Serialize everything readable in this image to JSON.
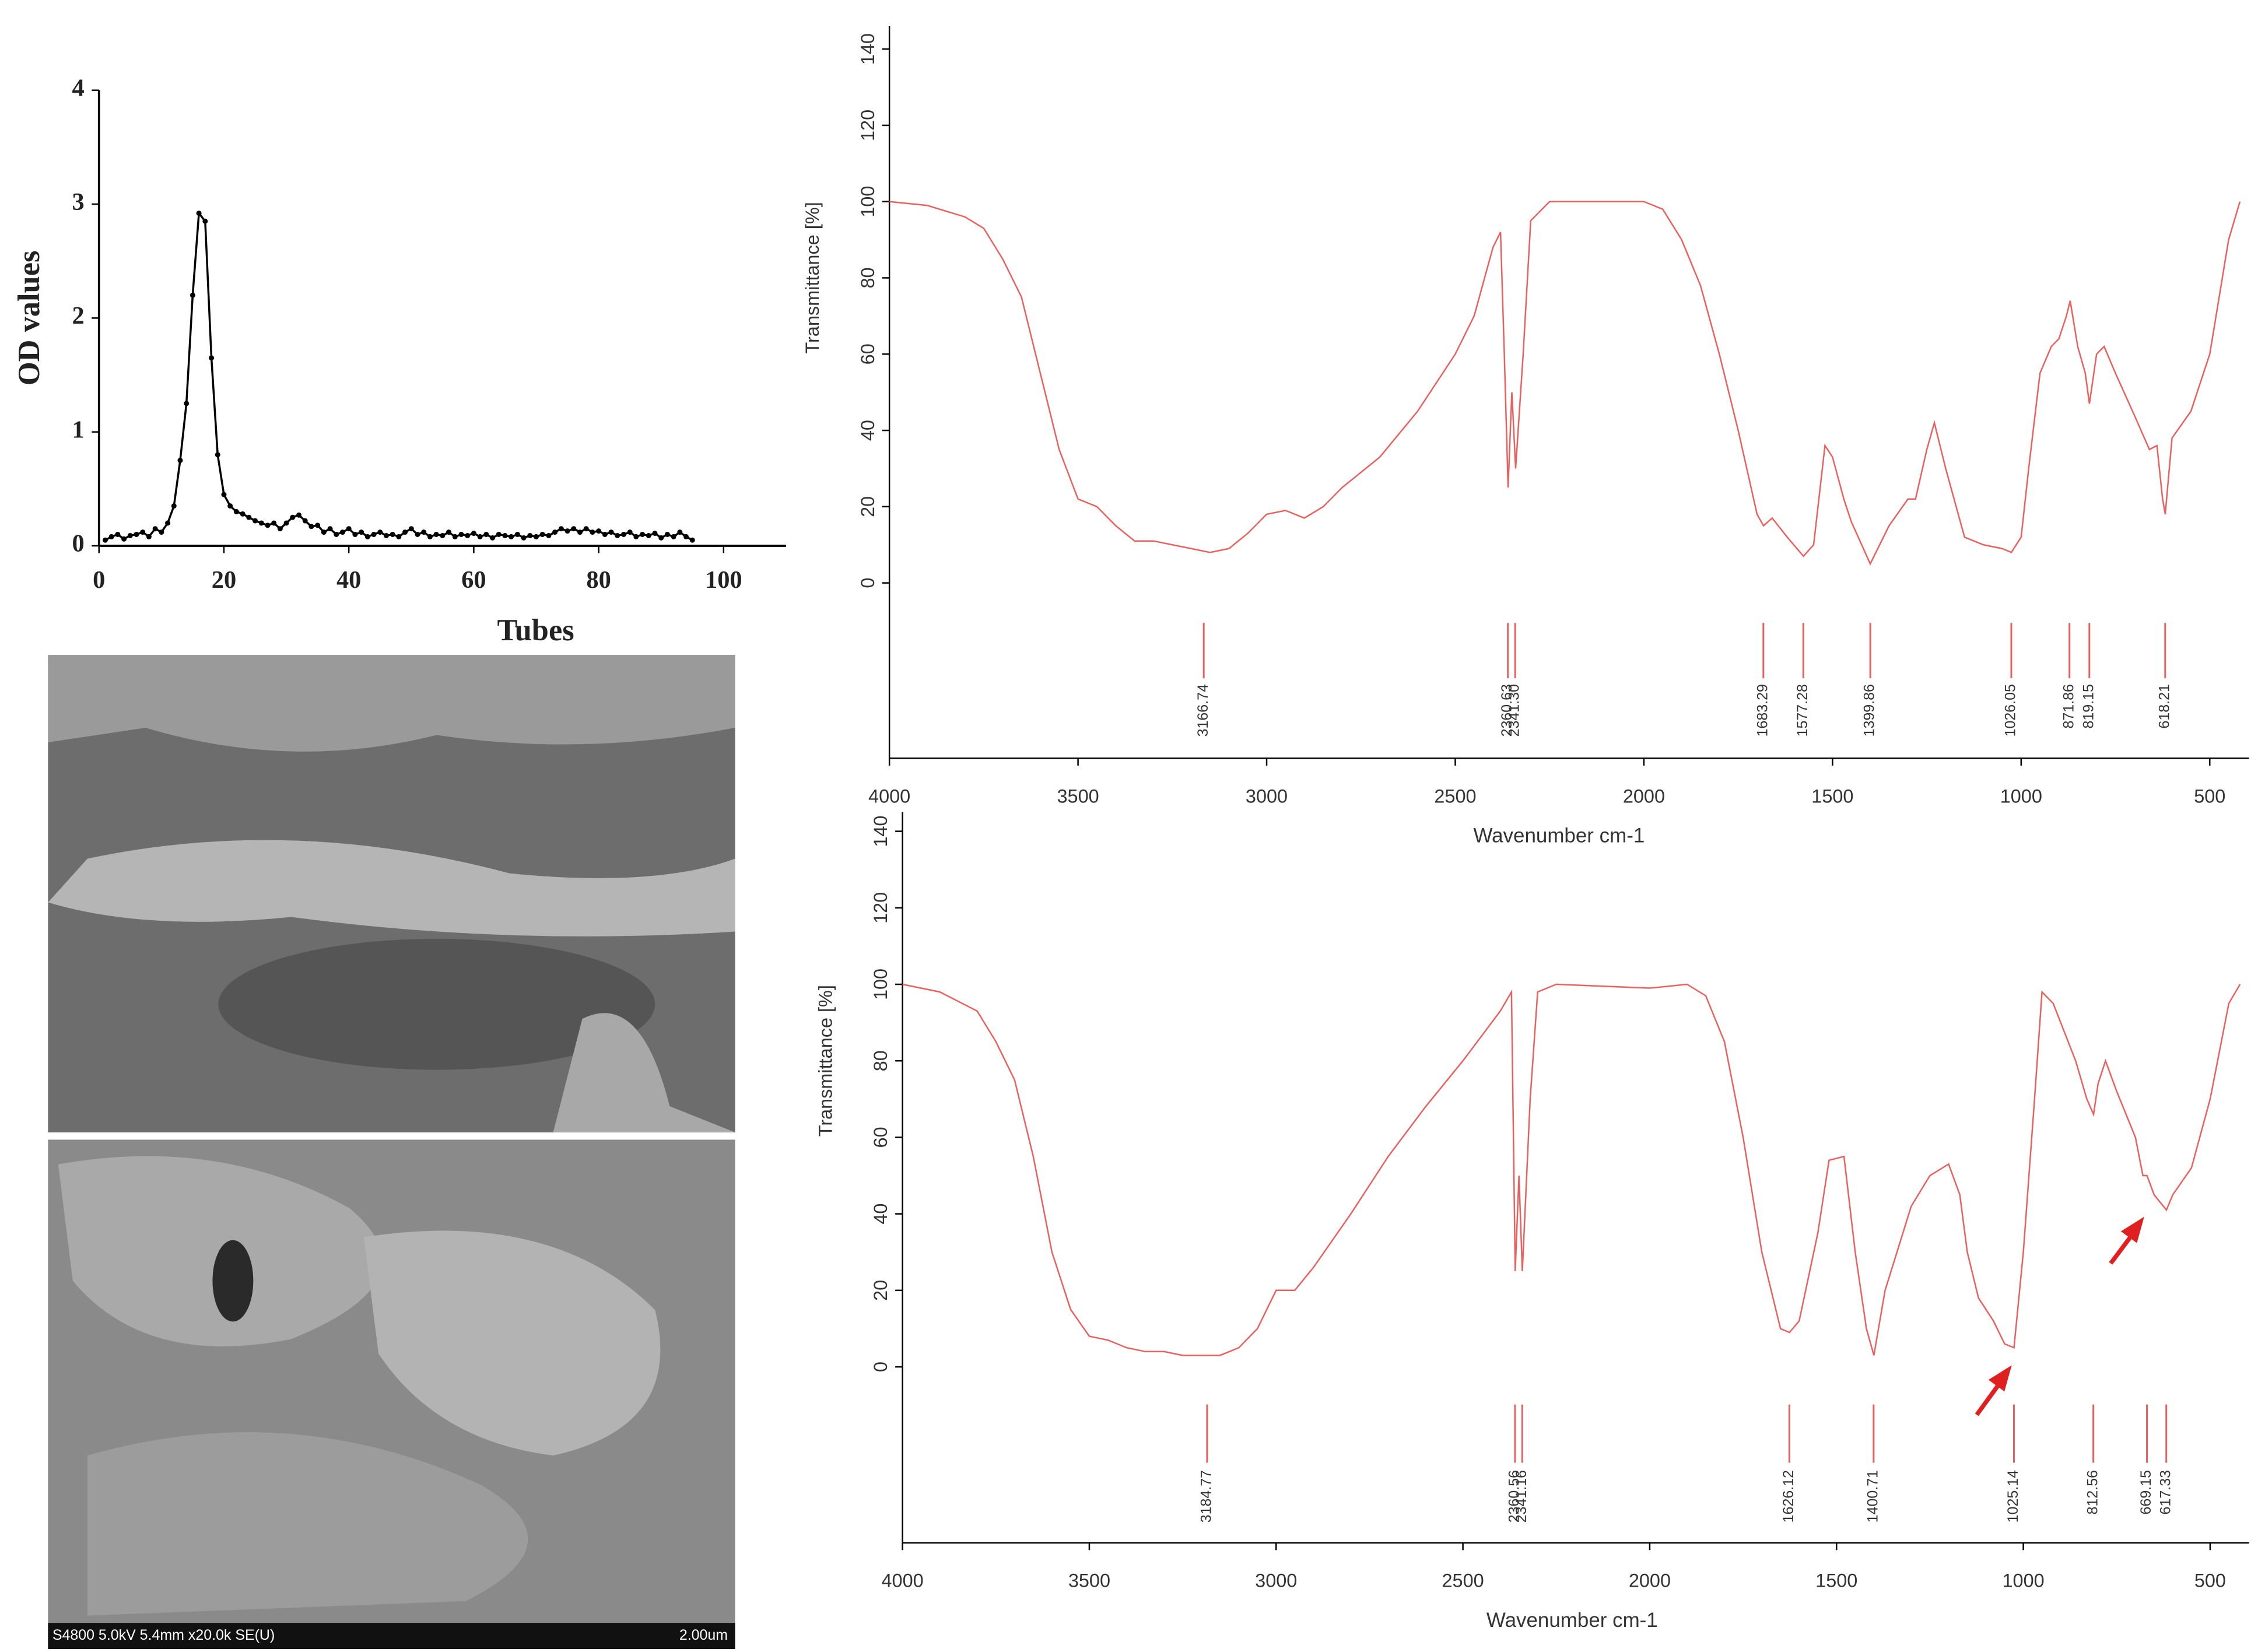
{
  "chart_data": [
    {
      "type": "line",
      "x_label": "Tubes",
      "y_label": "OD values",
      "color": "#000000",
      "markers": true,
      "x": [
        1,
        2,
        3,
        4,
        5,
        6,
        7,
        8,
        9,
        10,
        11,
        12,
        13,
        14,
        15,
        16,
        17,
        18,
        19,
        20,
        21,
        22,
        23,
        24,
        25,
        26,
        27,
        28,
        29,
        30,
        31,
        32,
        33,
        34,
        35,
        36,
        37,
        38,
        39,
        40,
        41,
        42,
        43,
        44,
        45,
        46,
        47,
        48,
        49,
        50,
        51,
        52,
        53,
        54,
        55,
        56,
        57,
        58,
        59,
        60,
        61,
        62,
        63,
        64,
        65,
        66,
        67,
        68,
        69,
        70,
        71,
        72,
        73,
        74,
        75,
        76,
        77,
        78,
        79,
        80,
        81,
        82,
        83,
        84,
        85,
        86,
        87,
        88,
        89,
        90,
        91,
        92,
        93,
        94,
        95
      ],
      "values": [
        0.05,
        0.08,
        0.1,
        0.06,
        0.09,
        0.1,
        0.12,
        0.08,
        0.15,
        0.12,
        0.2,
        0.35,
        0.75,
        1.25,
        2.2,
        2.92,
        2.85,
        1.65,
        0.8,
        0.45,
        0.35,
        0.3,
        0.28,
        0.25,
        0.22,
        0.2,
        0.18,
        0.2,
        0.15,
        0.2,
        0.25,
        0.27,
        0.22,
        0.17,
        0.18,
        0.12,
        0.15,
        0.1,
        0.12,
        0.15,
        0.1,
        0.12,
        0.08,
        0.1,
        0.12,
        0.09,
        0.1,
        0.08,
        0.12,
        0.15,
        0.1,
        0.12,
        0.08,
        0.1,
        0.09,
        0.12,
        0.08,
        0.1,
        0.09,
        0.11,
        0.08,
        0.1,
        0.07,
        0.1,
        0.09,
        0.08,
        0.1,
        0.07,
        0.09,
        0.08,
        0.1,
        0.09,
        0.12,
        0.15,
        0.13,
        0.15,
        0.12,
        0.15,
        0.12,
        0.13,
        0.1,
        0.12,
        0.09,
        0.1,
        0.12,
        0.08,
        0.1,
        0.09,
        0.11,
        0.07,
        0.1,
        0.08,
        0.12,
        0.08,
        0.05
      ],
      "xlim": [
        0,
        110
      ],
      "ylim": [
        0,
        4
      ],
      "xticks": [
        0,
        20,
        40,
        60,
        80,
        100
      ],
      "yticks": [
        0,
        1,
        2,
        3,
        4
      ]
    },
    {
      "type": "line",
      "x_label": "Wavenumber cm-1",
      "y_label": "Transmittance [%]",
      "color": "#e8615f",
      "markers": false,
      "x": [
        4000,
        3900,
        3800,
        3750,
        3700,
        3650,
        3600,
        3550,
        3500,
        3450,
        3400,
        3350,
        3300,
        3250,
        3200,
        3150,
        3100,
        3050,
        3000,
        2950,
        2900,
        2850,
        2800,
        2700,
        2600,
        2500,
        2450,
        2400,
        2380,
        2370,
        2360,
        2350,
        2340,
        2320,
        2300,
        2250,
        2000,
        1950,
        1900,
        1850,
        1800,
        1750,
        1700,
        1683,
        1660,
        1620,
        1577,
        1550,
        1520,
        1500,
        1470,
        1450,
        1400,
        1350,
        1300,
        1280,
        1250,
        1230,
        1200,
        1150,
        1100,
        1050,
        1026,
        1000,
        980,
        950,
        920,
        900,
        880,
        870,
        850,
        830,
        819,
        800,
        780,
        750,
        700,
        660,
        640,
        625,
        618,
        600,
        550,
        500,
        450,
        420
      ],
      "values": [
        100,
        99,
        96,
        93,
        85,
        75,
        55,
        35,
        22,
        20,
        15,
        11,
        11,
        10,
        9,
        8,
        9,
        13,
        18,
        19,
        17,
        20,
        25,
        33,
        45,
        60,
        70,
        88,
        92,
        60,
        25,
        50,
        30,
        60,
        95,
        100,
        100,
        98,
        90,
        78,
        60,
        40,
        18,
        15,
        17,
        12,
        7,
        10,
        36,
        33,
        22,
        16,
        5,
        15,
        22,
        22,
        35,
        42,
        30,
        12,
        10,
        9,
        8,
        12,
        30,
        55,
        62,
        64,
        70,
        74,
        62,
        55,
        47,
        60,
        62,
        55,
        44,
        35,
        36,
        22,
        18,
        38,
        45,
        60,
        90,
        100
      ],
      "xlim": [
        4000,
        396
      ],
      "ylim": [
        -46,
        146
      ],
      "xticks": [
        4000,
        3500,
        3000,
        2500,
        2000,
        1500,
        1000,
        500
      ],
      "yticks": [
        0,
        20,
        40,
        60,
        80,
        100,
        120,
        140
      ],
      "peaks": [
        3166.74,
        2360.63,
        {
          "value": 2341.3,
          "label": "2341.30"
        },
        1683.29,
        1577.28,
        1399.86,
        1026.05,
        871.86,
        819.15,
        618.21
      ]
    },
    {
      "type": "line",
      "x_label": "Wavenumber cm-1",
      "y_label": "Transmittance [%]",
      "color": "#e8615f",
      "markers": false,
      "x": [
        4000,
        3900,
        3800,
        3750,
        3700,
        3650,
        3600,
        3550,
        3500,
        3450,
        3400,
        3350,
        3300,
        3250,
        3184,
        3150,
        3100,
        3050,
        3000,
        2950,
        2900,
        2800,
        2700,
        2600,
        2500,
        2400,
        2370,
        2360,
        2350,
        2341,
        2320,
        2300,
        2250,
        2000,
        1900,
        1850,
        1800,
        1750,
        1700,
        1650,
        1626,
        1600,
        1550,
        1520,
        1480,
        1450,
        1420,
        1400,
        1370,
        1300,
        1250,
        1200,
        1170,
        1150,
        1120,
        1080,
        1050,
        1025,
        1000,
        970,
        950,
        920,
        880,
        860,
        830,
        812,
        800,
        780,
        750,
        700,
        680,
        669,
        650,
        617,
        600,
        550,
        500,
        450,
        420
      ],
      "values": [
        100,
        98,
        93,
        85,
        75,
        55,
        30,
        15,
        8,
        7,
        5,
        4,
        4,
        3,
        3,
        3,
        5,
        10,
        20,
        20,
        26,
        40,
        55,
        68,
        80,
        93,
        98,
        25,
        50,
        25,
        70,
        98,
        100,
        99,
        100,
        97,
        85,
        60,
        30,
        10,
        9,
        12,
        35,
        54,
        55,
        30,
        10,
        3,
        20,
        42,
        50,
        53,
        45,
        30,
        18,
        12,
        6,
        5,
        30,
        70,
        98,
        95,
        85,
        80,
        70,
        66,
        74,
        80,
        72,
        60,
        50,
        50,
        45,
        41,
        45,
        52,
        70,
        95,
        100
      ],
      "xlim": [
        4000,
        396
      ],
      "ylim": [
        -46,
        145
      ],
      "xticks": [
        4000,
        3500,
        3000,
        2500,
        2000,
        1500,
        1000,
        500
      ],
      "yticks": [
        0,
        20,
        40,
        60,
        80,
        100,
        120,
        140
      ],
      "peaks": [
        3184.77,
        2360.56,
        2341.16,
        1626.12,
        1400.71,
        1025.14,
        812.56,
        669.15,
        617.33
      ]
    }
  ],
  "sem_image": {
    "caption": "S4800 5.0kV 5.4mm x20.0k SE(U)",
    "scale": "2.00um"
  }
}
